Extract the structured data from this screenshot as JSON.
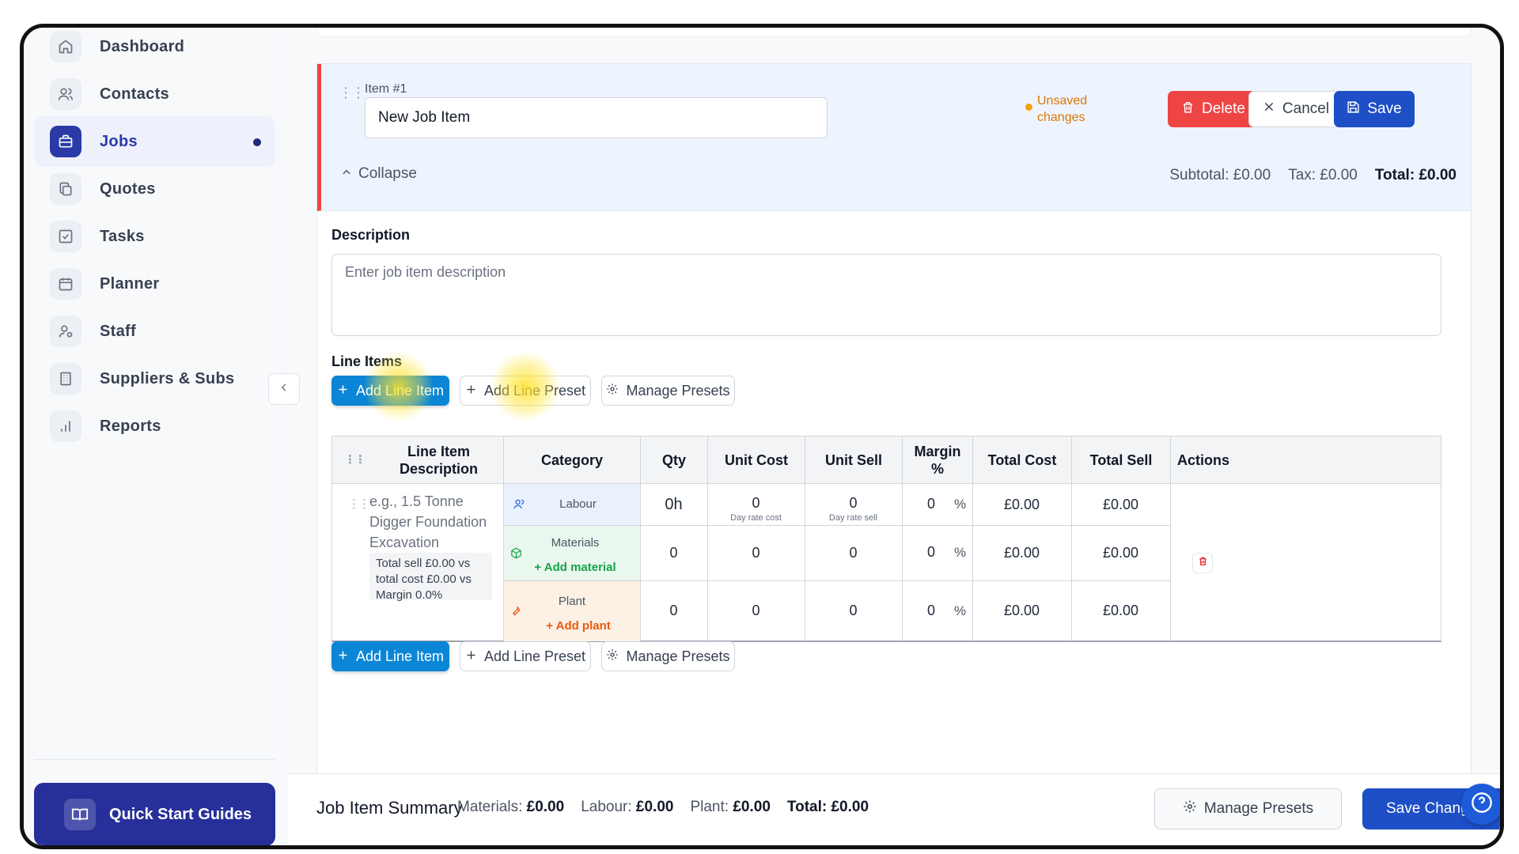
{
  "sidebar": {
    "items": [
      {
        "label": "Dashboard",
        "icon": "home-icon"
      },
      {
        "label": "Contacts",
        "icon": "users-icon"
      },
      {
        "label": "Jobs",
        "icon": "briefcase-icon",
        "active": true
      },
      {
        "label": "Quotes",
        "icon": "copy-icon"
      },
      {
        "label": "Tasks",
        "icon": "checkbox-icon"
      },
      {
        "label": "Planner",
        "icon": "calendar-icon"
      },
      {
        "label": "Staff",
        "icon": "user-cog-icon"
      },
      {
        "label": "Suppliers & Subs",
        "icon": "building-icon"
      },
      {
        "label": "Reports",
        "icon": "bar-chart-icon"
      }
    ],
    "quick_start_label": "Quick Start Guides"
  },
  "item": {
    "number_label": "Item #1",
    "name_value": "New Job Item",
    "unsaved_text": "Unsaved changes",
    "delete_label": "Delete",
    "cancel_label": "Cancel",
    "save_label": "Save",
    "collapse_label": "Collapse",
    "subtotal": "Subtotal: £0.00",
    "tax": "Tax: £0.00",
    "total": "Total: £0.00"
  },
  "description": {
    "label": "Description",
    "placeholder": "Enter job item description"
  },
  "line_items": {
    "label": "Line Items",
    "add_line_item_label": "Add Line Item",
    "add_line_preset_label": "Add Line Preset",
    "manage_presets_label": "Manage Presets",
    "columns": [
      "Line Item Description",
      "Category",
      "Qty",
      "Unit Cost",
      "Unit Sell",
      "Margin %",
      "Total Cost",
      "Total Sell",
      "Actions"
    ],
    "row": {
      "description_placeholder": "e.g., 1.5 Tonne Digger Foundation Excavation",
      "summary": "Total sell £0.00 vs total cost £0.00 vs Margin 0.0%",
      "categories": [
        {
          "name": "Labour",
          "qty": "0h",
          "unit_cost": "0",
          "unit_cost_hint": "Day rate cost",
          "unit_sell": "0",
          "unit_sell_hint": "Day rate sell",
          "margin": "0",
          "margin_unit": "%",
          "total_cost": "£0.00",
          "total_sell": "£0.00",
          "color": "#e8f1fc"
        },
        {
          "name": "Materials",
          "add_label": "Add material",
          "qty": "0",
          "unit_cost": "0",
          "unit_sell": "0",
          "margin": "0",
          "margin_unit": "%",
          "total_cost": "£0.00",
          "total_sell": "£0.00",
          "color": "#eaf7ee"
        },
        {
          "name": "Plant",
          "add_label": "Add plant",
          "qty": "0",
          "unit_cost": "0",
          "unit_sell": "0",
          "margin": "0",
          "margin_unit": "%",
          "total_cost": "£0.00",
          "total_sell": "£0.00",
          "color": "#fdf1e6"
        }
      ]
    }
  },
  "summary_bar": {
    "title": "Job Item Summary",
    "materials_label": "Materials:",
    "materials_value": "£0.00",
    "labour_label": "Labour:",
    "labour_value": "£0.00",
    "plant_label": "Plant:",
    "plant_value": "£0.00",
    "total_label": "Total: £0.00",
    "manage_presets_label": "Manage Presets",
    "save_changes_label": "Save Changes"
  },
  "colors": {
    "primary": "#1e4fc7",
    "delete": "#ef4444",
    "add": "#0b86d6",
    "sidebar_active": "#2a3aa6",
    "unsaved": "#d97706"
  }
}
